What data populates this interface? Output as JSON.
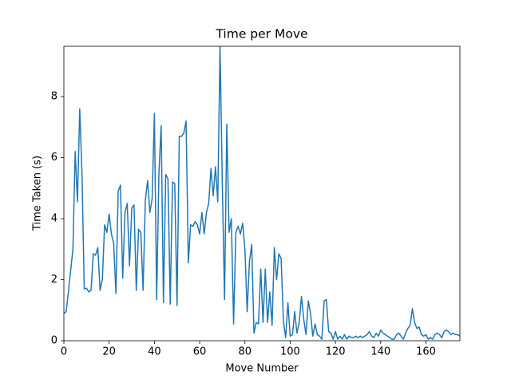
{
  "chart_data": {
    "type": "line",
    "title": "Time per Move",
    "x_label": "Move Number",
    "y_label": "Time Taken (s)",
    "color": "#1f77b4",
    "x": [
      0,
      1,
      2,
      3,
      4,
      5,
      6,
      7,
      8,
      9,
      10,
      11,
      12,
      13,
      14,
      15,
      16,
      17,
      18,
      19,
      20,
      21,
      22,
      23,
      24,
      25,
      26,
      27,
      28,
      29,
      30,
      31,
      32,
      33,
      34,
      35,
      36,
      37,
      38,
      39,
      40,
      41,
      42,
      43,
      44,
      45,
      46,
      47,
      48,
      49,
      50,
      51,
      52,
      53,
      54,
      55,
      56,
      57,
      58,
      59,
      60,
      61,
      62,
      63,
      64,
      65,
      66,
      67,
      68,
      69,
      70,
      71,
      72,
      73,
      74,
      75,
      76,
      77,
      78,
      79,
      80,
      81,
      82,
      83,
      84,
      85,
      86,
      87,
      88,
      89,
      90,
      91,
      92,
      93,
      94,
      95,
      96,
      97,
      98,
      99,
      100,
      101,
      102,
      103,
      104,
      105,
      106,
      107,
      108,
      109,
      110,
      111,
      112,
      113,
      114,
      115,
      116,
      117,
      118,
      119,
      120,
      121,
      122,
      123,
      124,
      125,
      126,
      127,
      128,
      129,
      130,
      131,
      132,
      133,
      134,
      135,
      136,
      137,
      138,
      139,
      140,
      141,
      142,
      143,
      144,
      145,
      146,
      147,
      148,
      149,
      150,
      151,
      152,
      153,
      154,
      155,
      156,
      157,
      158,
      159,
      160,
      161,
      162,
      163,
      164,
      165,
      166,
      167,
      168,
      169,
      170,
      171,
      172,
      173,
      174,
      175
    ],
    "values": [
      0.9,
      0.95,
      1.6,
      2.3,
      3.0,
      6.2,
      4.55,
      7.6,
      5.5,
      1.7,
      1.72,
      1.6,
      1.65,
      2.85,
      2.8,
      3.05,
      1.65,
      2.0,
      3.8,
      3.55,
      4.15,
      3.5,
      3.2,
      1.55,
      4.9,
      5.1,
      2.05,
      4.2,
      4.5,
      2.45,
      4.35,
      4.45,
      1.65,
      3.65,
      3.55,
      1.65,
      4.6,
      5.25,
      4.2,
      4.65,
      7.45,
      1.35,
      5.5,
      7.05,
      1.25,
      5.45,
      5.3,
      1.2,
      5.2,
      5.15,
      1.15,
      6.7,
      6.7,
      6.8,
      7.2,
      2.55,
      3.8,
      3.75,
      3.9,
      3.8,
      3.5,
      4.2,
      3.5,
      4.2,
      4.5,
      5.65,
      4.75,
      5.7,
      4.55,
      9.65,
      5.2,
      1.35,
      7.1,
      3.55,
      4.0,
      0.55,
      3.55,
      3.75,
      3.5,
      3.85,
      3.0,
      0.95,
      2.6,
      3.15,
      0.25,
      0.6,
      0.55,
      2.35,
      0.6,
      2.35,
      0.6,
      1.6,
      0.5,
      3.05,
      2.0,
      2.85,
      2.7,
      0.65,
      0.1,
      1.25,
      0.15,
      0.2,
      0.95,
      0.25,
      0.6,
      1.45,
      0.7,
      0.2,
      1.3,
      0.9,
      0.15,
      0.55,
      0.2,
      0.15,
      0.05,
      1.3,
      1.35,
      0.3,
      0.25,
      0.05,
      0.3,
      0.05,
      0.15,
      0.05,
      0.2,
      0.05,
      0.15,
      0.1,
      0.1,
      0.15,
      0.1,
      0.15,
      0.1,
      0.15,
      0.2,
      0.3,
      0.15,
      0.1,
      0.25,
      0.15,
      0.35,
      0.25,
      0.2,
      0.15,
      0.1,
      0.05,
      0.05,
      0.2,
      0.25,
      0.15,
      0.05,
      0.25,
      0.4,
      0.5,
      1.05,
      0.6,
      0.4,
      0.45,
      0.2,
      0.15,
      0.2,
      0.05,
      0.1,
      0.05,
      0.2,
      0.25,
      0.2,
      0.1,
      0.3,
      0.35,
      0.3,
      0.2,
      0.25,
      0.2,
      0.2,
      0.15
    ],
    "xlim": [
      0,
      175
    ],
    "ylim": [
      0,
      9.65
    ],
    "xticks": [
      0,
      20,
      40,
      60,
      80,
      100,
      120,
      140,
      160
    ],
    "yticks": [
      0,
      2,
      4,
      6,
      8
    ]
  }
}
